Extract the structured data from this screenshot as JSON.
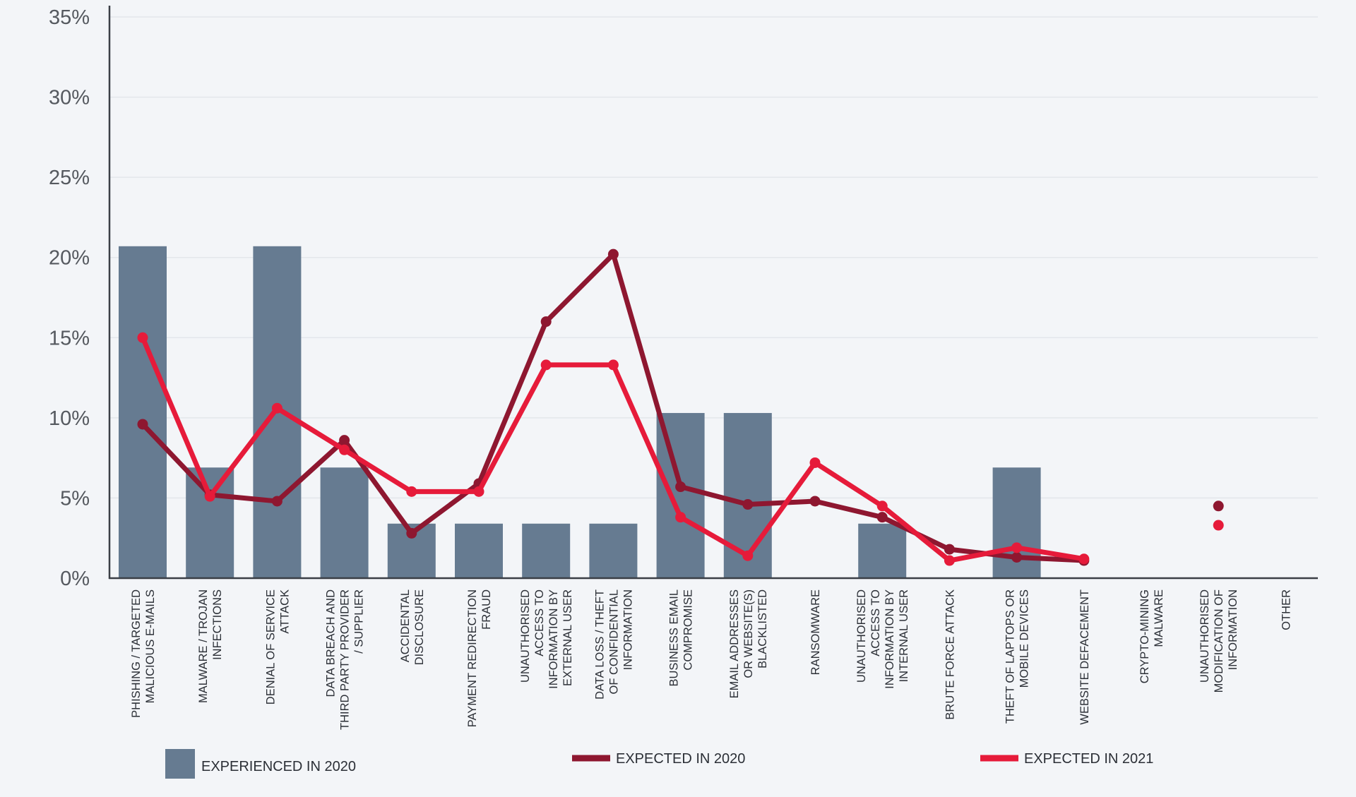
{
  "chart_data": {
    "type": "bar",
    "title": "",
    "xlabel": "",
    "ylabel": "",
    "ylim": [
      0,
      35
    ],
    "yticks": [
      0,
      5,
      10,
      15,
      20,
      25,
      30,
      35
    ],
    "ytick_labels": [
      "0%",
      "5%",
      "10%",
      "15%",
      "20%",
      "25%",
      "30%",
      "35%"
    ],
    "grid": true,
    "legend_position": "bottom",
    "categories": [
      [
        "PHISHING / TARGETED",
        "MALICIOUS E-MAILS"
      ],
      [
        "MALWARE / TROJAN",
        "INFECTIONS"
      ],
      [
        "DENIAL OF SERVICE",
        "ATTACK"
      ],
      [
        "DATA BREACH AND",
        "THIRD PARTY PROVIDER",
        "/ SUPPLIER"
      ],
      [
        "ACCIDENTAL",
        "DISCLOSURE"
      ],
      [
        "PAYMENT REDIRECTION",
        "FRAUD"
      ],
      [
        "UNAUTHORISED",
        "ACCESS TO",
        "INFORMATION BY",
        "EXTERNAL USER"
      ],
      [
        "DATA LOSS / THEFT",
        "OF CONFIDENTIAL",
        "INFORMATION"
      ],
      [
        "BUSINESS EMAIL",
        "COMPROMISE"
      ],
      [
        "EMAIL ADDRESSES",
        "OR WEBSITE(S)",
        "BLACKLISTED"
      ],
      [
        "RANSOMWARE"
      ],
      [
        "UNAUTHORISED",
        "ACCESS TO",
        "INFORMATION BY",
        "INTERNAL USER"
      ],
      [
        "BRUTE FORCE ATTACK"
      ],
      [
        "THEFT OF LAPTOPS OR",
        "MOBILE DEVICES"
      ],
      [
        "WEBSITE DEFACEMENT"
      ],
      [
        "CRYPTO-MINING",
        "MALWARE"
      ],
      [
        "UNAUTHORISED",
        "MODIFICATION OF",
        "INFORMATION"
      ],
      [
        "OTHER"
      ]
    ],
    "series": [
      {
        "name": "EXPERIENCED IN 2020",
        "kind": "bar",
        "color": "#667b91",
        "values": [
          20.7,
          6.9,
          20.7,
          6.9,
          3.4,
          3.4,
          3.4,
          3.4,
          10.3,
          10.3,
          0,
          3.4,
          0,
          6.9,
          0,
          0,
          0,
          0
        ]
      },
      {
        "name": "EXPECTED IN 2020",
        "kind": "line",
        "color": "#8e1730",
        "values": [
          9.6,
          5.2,
          4.8,
          8.6,
          2.8,
          5.9,
          16.0,
          20.2,
          5.7,
          4.6,
          4.8,
          3.8,
          1.8,
          1.3,
          1.1,
          null,
          4.5,
          null
        ]
      },
      {
        "name": "EXPECTED IN 2021",
        "kind": "line",
        "color": "#e61b3a",
        "values": [
          15.0,
          5.1,
          10.6,
          8.0,
          5.4,
          5.4,
          13.3,
          13.3,
          3.8,
          1.4,
          7.2,
          4.5,
          1.1,
          1.9,
          1.2,
          null,
          3.3,
          null
        ]
      }
    ]
  }
}
